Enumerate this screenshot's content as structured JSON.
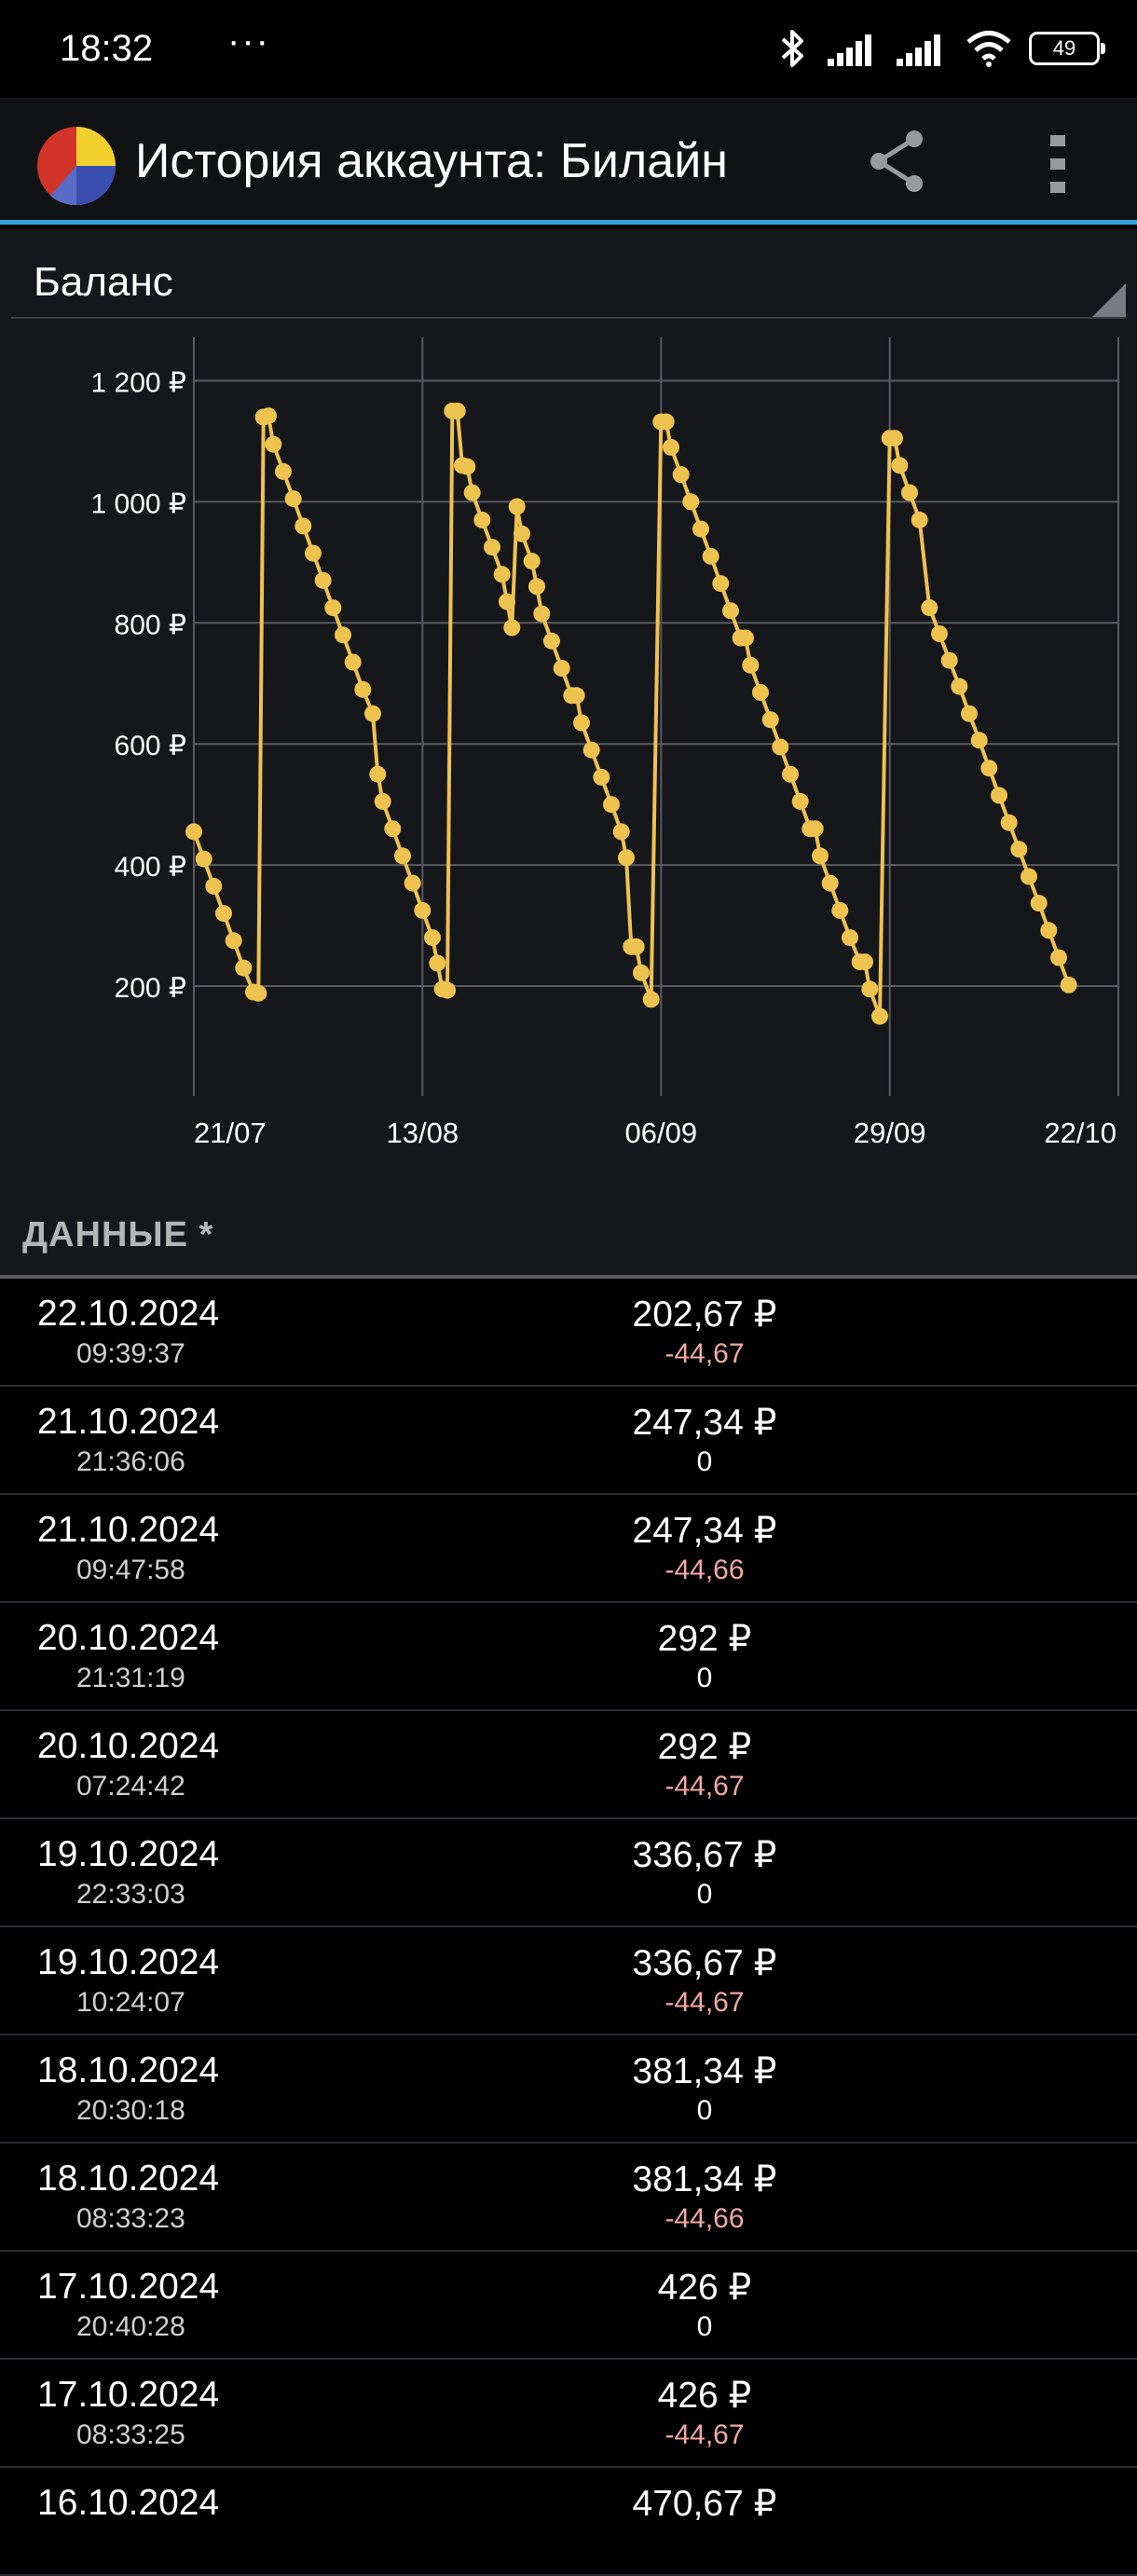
{
  "status_bar": {
    "time": "18:32",
    "dots": "···",
    "battery": "49"
  },
  "app_bar": {
    "title": "История аккаунта: Билайн"
  },
  "selector": {
    "label": "Баланс"
  },
  "section": {
    "title": "ДАННЫЕ *"
  },
  "colors": {
    "line": "#eec24f",
    "accent": "#33a4e0",
    "negative": "#f0a9a0"
  },
  "chart_data": {
    "type": "line",
    "yticks": [
      "1 200 ₽",
      "1 000 ₽",
      "800 ₽",
      "600 ₽",
      "400 ₽",
      "200 ₽"
    ],
    "ytick_values": [
      1200,
      1000,
      800,
      600,
      400,
      200
    ],
    "xticks": [
      "21/07",
      "13/08",
      "06/09",
      "29/09",
      "22/10"
    ],
    "ylim": [
      80,
      1250
    ],
    "xlim": [
      "2024-07-21",
      "2024-10-22"
    ],
    "grid": true,
    "series": [
      {
        "values": [
          [
            "2024-07-21",
            455
          ],
          [
            "2024-07-22",
            410
          ],
          [
            "2024-07-23",
            365
          ],
          [
            "2024-07-24",
            320
          ],
          [
            "2024-07-25",
            275
          ],
          [
            "2024-07-26",
            230
          ],
          [
            "2024-07-27",
            190
          ],
          [
            "2024-07-27",
            188
          ],
          [
            "2024-07-28",
            1140
          ],
          [
            "2024-07-28",
            1142
          ],
          [
            "2024-07-29",
            1095
          ],
          [
            "2024-07-30",
            1050
          ],
          [
            "2024-07-31",
            1005
          ],
          [
            "2024-08-01",
            960
          ],
          [
            "2024-08-02",
            915
          ],
          [
            "2024-08-03",
            870
          ],
          [
            "2024-08-04",
            825
          ],
          [
            "2024-08-05",
            780
          ],
          [
            "2024-08-06",
            735
          ],
          [
            "2024-08-07",
            690
          ],
          [
            "2024-08-08",
            650
          ],
          [
            "2024-08-08",
            550
          ],
          [
            "2024-08-09",
            505
          ],
          [
            "2024-08-10",
            460
          ],
          [
            "2024-08-11",
            415
          ],
          [
            "2024-08-12",
            370
          ],
          [
            "2024-08-13",
            325
          ],
          [
            "2024-08-14",
            280
          ],
          [
            "2024-08-14",
            238
          ],
          [
            "2024-08-15",
            195
          ],
          [
            "2024-08-15",
            193
          ],
          [
            "2024-08-16",
            1150
          ],
          [
            "2024-08-16",
            1150
          ],
          [
            "2024-08-17",
            1060
          ],
          [
            "2024-08-17",
            1058
          ],
          [
            "2024-08-18",
            1015
          ],
          [
            "2024-08-19",
            970
          ],
          [
            "2024-08-20",
            925
          ],
          [
            "2024-08-21",
            880
          ],
          [
            "2024-08-21",
            835
          ],
          [
            "2024-08-22",
            792
          ],
          [
            "2024-08-22",
            992
          ],
          [
            "2024-08-23",
            947
          ],
          [
            "2024-08-24",
            902
          ],
          [
            "2024-08-24",
            860
          ],
          [
            "2024-08-25",
            815
          ],
          [
            "2024-08-26",
            770
          ],
          [
            "2024-08-27",
            725
          ],
          [
            "2024-08-28",
            680
          ],
          [
            "2024-08-28",
            680
          ],
          [
            "2024-08-29",
            635
          ],
          [
            "2024-08-30",
            590
          ],
          [
            "2024-08-31",
            545
          ],
          [
            "2024-09-01",
            500
          ],
          [
            "2024-09-02",
            455
          ],
          [
            "2024-09-02",
            412
          ],
          [
            "2024-09-03",
            265
          ],
          [
            "2024-09-03",
            265
          ],
          [
            "2024-09-04",
            222
          ],
          [
            "2024-09-05",
            178
          ],
          [
            "2024-09-06",
            1132
          ],
          [
            "2024-09-06",
            1132
          ],
          [
            "2024-09-07",
            1090
          ],
          [
            "2024-09-08",
            1045
          ],
          [
            "2024-09-09",
            1000
          ],
          [
            "2024-09-10",
            955
          ],
          [
            "2024-09-11",
            910
          ],
          [
            "2024-09-12",
            865
          ],
          [
            "2024-09-13",
            820
          ],
          [
            "2024-09-14",
            775
          ],
          [
            "2024-09-14",
            775
          ],
          [
            "2024-09-15",
            730
          ],
          [
            "2024-09-16",
            685
          ],
          [
            "2024-09-17",
            640
          ],
          [
            "2024-09-18",
            595
          ],
          [
            "2024-09-19",
            550
          ],
          [
            "2024-09-20",
            505
          ],
          [
            "2024-09-21",
            460
          ],
          [
            "2024-09-21",
            460
          ],
          [
            "2024-09-22",
            415
          ],
          [
            "2024-09-23",
            370
          ],
          [
            "2024-09-24",
            325
          ],
          [
            "2024-09-25",
            280
          ],
          [
            "2024-09-26",
            240
          ],
          [
            "2024-09-26",
            240
          ],
          [
            "2024-09-27",
            195
          ],
          [
            "2024-09-28",
            150
          ],
          [
            "2024-09-29",
            1105
          ],
          [
            "2024-09-29",
            1105
          ],
          [
            "2024-09-30",
            1060
          ],
          [
            "2024-10-01",
            1015
          ],
          [
            "2024-10-02",
            970
          ],
          [
            "2024-10-03",
            825
          ],
          [
            "2024-10-04",
            782
          ],
          [
            "2024-10-05",
            738
          ],
          [
            "2024-10-06",
            695
          ],
          [
            "2024-10-07",
            650
          ],
          [
            "2024-10-08",
            606
          ],
          [
            "2024-10-09",
            560
          ],
          [
            "2024-10-10",
            515
          ],
          [
            "2024-10-11",
            470
          ],
          [
            "2024-10-12",
            426
          ],
          [
            "2024-10-13",
            381
          ],
          [
            "2024-10-14",
            337
          ],
          [
            "2024-10-15",
            292
          ],
          [
            "2024-10-16",
            247
          ],
          [
            "2024-10-17",
            202
          ]
        ]
      }
    ]
  },
  "rows": [
    {
      "date": "22.10.2024",
      "time": "09:39:37",
      "amount": "202,67 ₽",
      "delta": "-44,67"
    },
    {
      "date": "21.10.2024",
      "time": "21:36:06",
      "amount": "247,34 ₽",
      "delta": "0"
    },
    {
      "date": "21.10.2024",
      "time": "09:47:58",
      "amount": "247,34 ₽",
      "delta": "-44,66"
    },
    {
      "date": "20.10.2024",
      "time": "21:31:19",
      "amount": "292 ₽",
      "delta": "0"
    },
    {
      "date": "20.10.2024",
      "time": "07:24:42",
      "amount": "292 ₽",
      "delta": "-44,67"
    },
    {
      "date": "19.10.2024",
      "time": "22:33:03",
      "amount": "336,67 ₽",
      "delta": "0"
    },
    {
      "date": "19.10.2024",
      "time": "10:24:07",
      "amount": "336,67 ₽",
      "delta": "-44,67"
    },
    {
      "date": "18.10.2024",
      "time": "20:30:18",
      "amount": "381,34 ₽",
      "delta": "0"
    },
    {
      "date": "18.10.2024",
      "time": "08:33:23",
      "amount": "381,34 ₽",
      "delta": "-44,66"
    },
    {
      "date": "17.10.2024",
      "time": "20:40:28",
      "amount": "426 ₽",
      "delta": "0"
    },
    {
      "date": "17.10.2024",
      "time": "08:33:25",
      "amount": "426 ₽",
      "delta": "-44,67"
    },
    {
      "date": "16.10.2024",
      "time": "",
      "amount": "470,67 ₽",
      "delta": ""
    }
  ]
}
